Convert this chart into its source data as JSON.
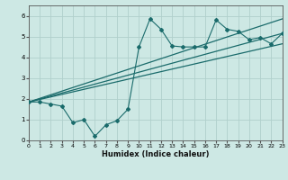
{
  "title": "",
  "xlabel": "Humidex (Indice chaleur)",
  "xlim": [
    0,
    23
  ],
  "ylim": [
    0,
    6.5
  ],
  "xtick_labels": [
    "0",
    "1",
    "2",
    "3",
    "4",
    "5",
    "6",
    "7",
    "8",
    "9",
    "10",
    "11",
    "12",
    "13",
    "14",
    "15",
    "16",
    "17",
    "18",
    "19",
    "20",
    "21",
    "22",
    "23"
  ],
  "xtick_vals": [
    0,
    1,
    2,
    3,
    4,
    5,
    6,
    7,
    8,
    9,
    10,
    11,
    12,
    13,
    14,
    15,
    16,
    17,
    18,
    19,
    20,
    21,
    22,
    23
  ],
  "ytick_vals": [
    0,
    1,
    2,
    3,
    4,
    5,
    6
  ],
  "bg_color": "#cde8e4",
  "grid_color": "#b0d0cc",
  "line_color": "#1a6b6b",
  "scatter_x": [
    0,
    1,
    2,
    3,
    4,
    5,
    6,
    7,
    8,
    9,
    10,
    11,
    12,
    13,
    14,
    15,
    16,
    17,
    18,
    19,
    20,
    21,
    22,
    23
  ],
  "scatter_y": [
    1.85,
    1.85,
    1.75,
    1.65,
    0.85,
    1.0,
    0.2,
    0.75,
    0.95,
    1.5,
    4.5,
    5.85,
    5.35,
    4.55,
    4.5,
    4.5,
    4.5,
    5.8,
    5.35,
    5.25,
    4.85,
    4.95,
    4.65,
    5.15
  ],
  "trend1_x0": 0,
  "trend1_y0": 1.85,
  "trend1_x1": 23,
  "trend1_y1": 5.15,
  "trend2_x0": 0,
  "trend2_y0": 1.85,
  "trend2_x1": 23,
  "trend2_y1": 4.65,
  "trend3_x0": 0,
  "trend3_y0": 1.85,
  "trend3_x1": 23,
  "trend3_y1": 5.85,
  "figsize": [
    3.2,
    2.0
  ],
  "dpi": 100
}
